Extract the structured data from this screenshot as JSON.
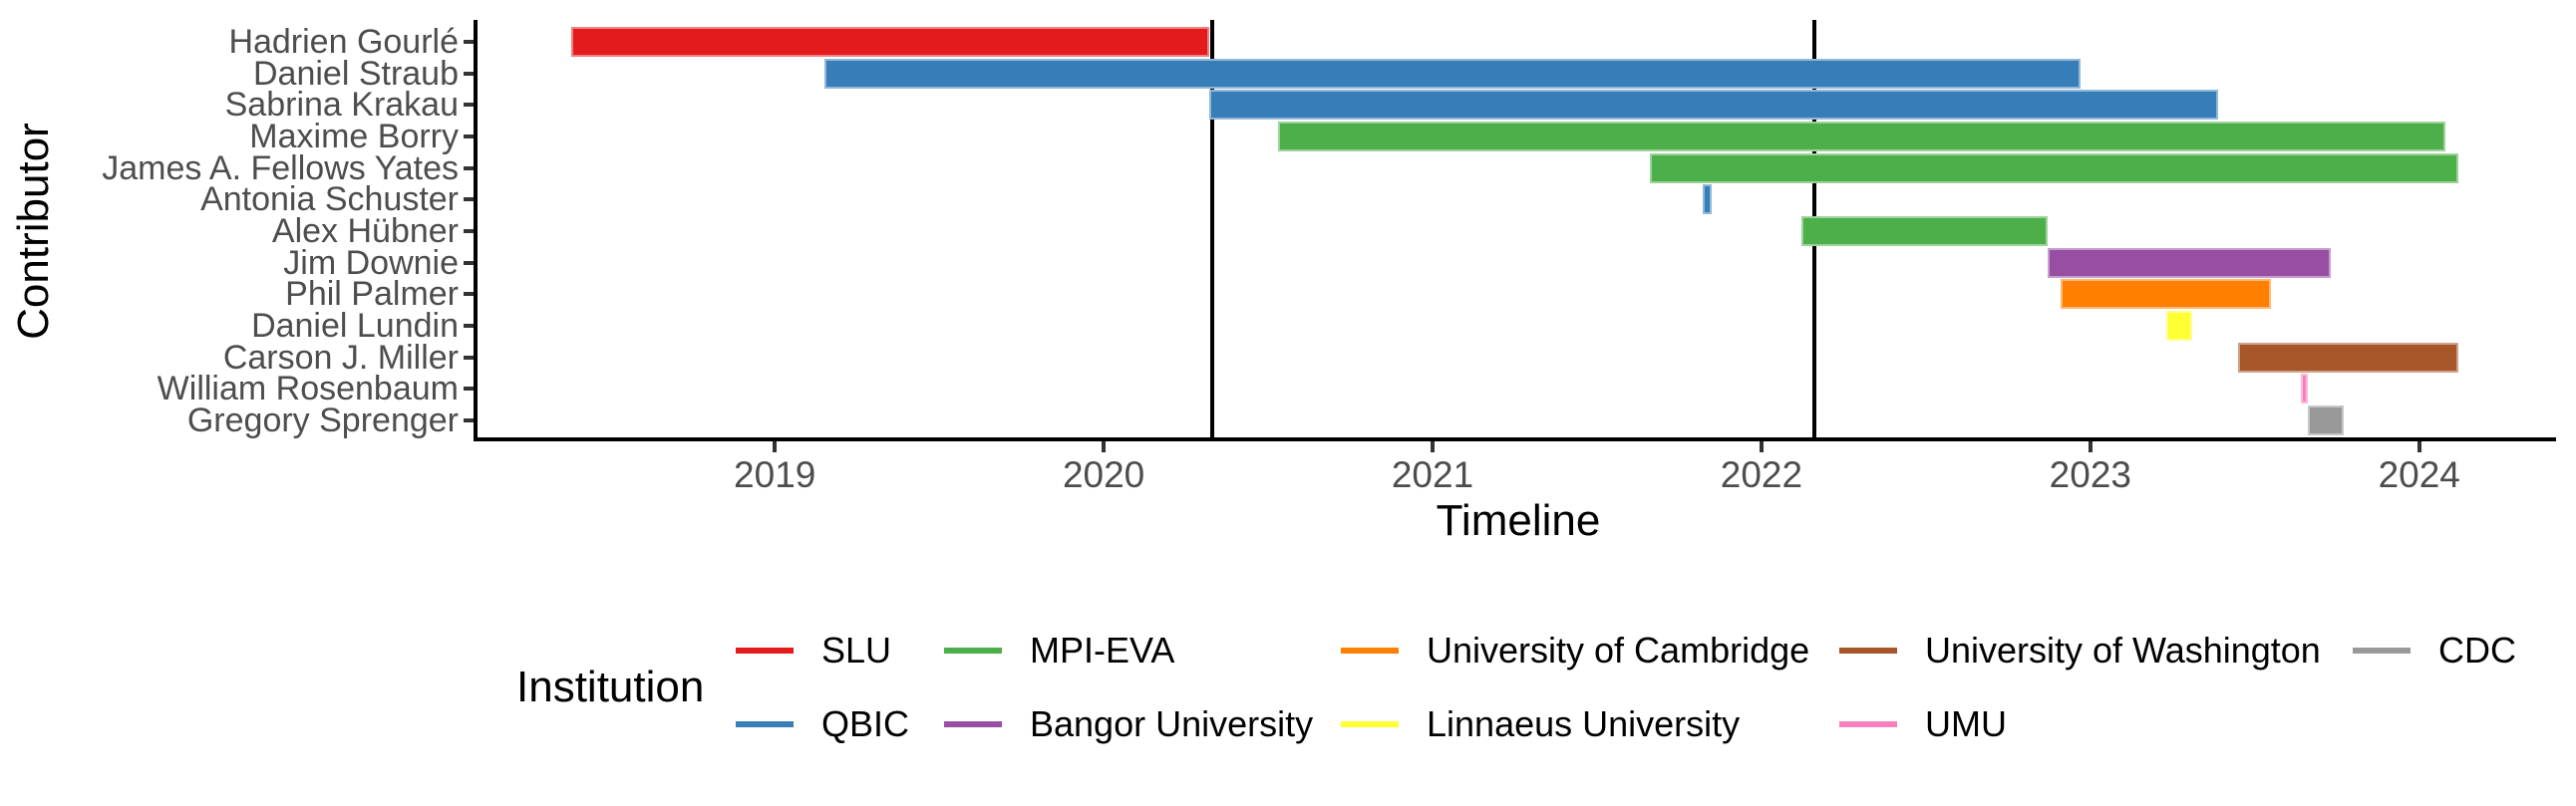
{
  "chart_data": {
    "type": "bar",
    "variant": "gantt-timeline",
    "title": "",
    "xlabel": "Timeline",
    "ylabel": "Contributor",
    "legend_title": "Institution",
    "x_ticks": [
      "2019",
      "2020",
      "2021",
      "2022",
      "2023",
      "2024"
    ],
    "x_tick_years": [
      2019,
      2020,
      2021,
      2022,
      2023,
      2024
    ],
    "x_range": [
      2018.09,
      2024.41
    ],
    "grid": false,
    "legend_position": "bottom",
    "event_lines": [
      2020.33,
      2022.16
    ],
    "institutions": [
      {
        "name": "SLU",
        "color": "#E41A1C"
      },
      {
        "name": "QBIC",
        "color": "#377EB8"
      },
      {
        "name": "MPI-EVA",
        "color": "#4DAF4A"
      },
      {
        "name": "Bangor University",
        "color": "#984EA3"
      },
      {
        "name": "University of Cambridge",
        "color": "#FF7F00"
      },
      {
        "name": "Linnaeus University",
        "color": "#FFFF33"
      },
      {
        "name": "University of Washington",
        "color": "#A65628"
      },
      {
        "name": "UMU",
        "color": "#F781BF"
      },
      {
        "name": "CDC",
        "color": "#999999"
      }
    ],
    "legend_columns": [
      [
        "SLU",
        "QBIC"
      ],
      [
        "MPI-EVA",
        "Bangor University"
      ],
      [
        "University of Cambridge",
        "Linnaeus University"
      ],
      [
        "University of Washington",
        "UMU"
      ],
      [
        "CDC"
      ]
    ],
    "contributors": [
      {
        "name": "Hadrien Gourlé",
        "institution": "SLU",
        "start": 2018.38,
        "end": 2020.32
      },
      {
        "name": "Daniel Straub",
        "institution": "QBIC",
        "start": 2019.15,
        "end": 2022.97
      },
      {
        "name": "Sabrina Krakau",
        "institution": "QBIC",
        "start": 2020.32,
        "end": 2023.39
      },
      {
        "name": "Maxime Borry",
        "institution": "MPI-EVA",
        "start": 2020.53,
        "end": 2024.08
      },
      {
        "name": "James A. Fellows Yates",
        "institution": "MPI-EVA",
        "start": 2021.66,
        "end": 2024.12
      },
      {
        "name": "Antonia Schuster",
        "institution": "QBIC",
        "start": 2021.82,
        "end": 2021.85
      },
      {
        "name": "Alex Hübner",
        "institution": "MPI-EVA",
        "start": 2022.12,
        "end": 2022.87
      },
      {
        "name": "Jim Downie",
        "institution": "Bangor University",
        "start": 2022.87,
        "end": 2023.73
      },
      {
        "name": "Phil Palmer",
        "institution": "University of Cambridge",
        "start": 2022.91,
        "end": 2023.55
      },
      {
        "name": "Daniel Lundin",
        "institution": "Linnaeus University",
        "start": 2023.23,
        "end": 2023.31
      },
      {
        "name": "Carson J. Miller",
        "institution": "University of Washington",
        "start": 2023.45,
        "end": 2024.12
      },
      {
        "name": "William Rosenbaum",
        "institution": "UMU",
        "start": 2023.64,
        "end": 2023.66
      },
      {
        "name": "Gregory Sprenger",
        "institution": "CDC",
        "start": 2023.66,
        "end": 2023.77
      }
    ]
  }
}
